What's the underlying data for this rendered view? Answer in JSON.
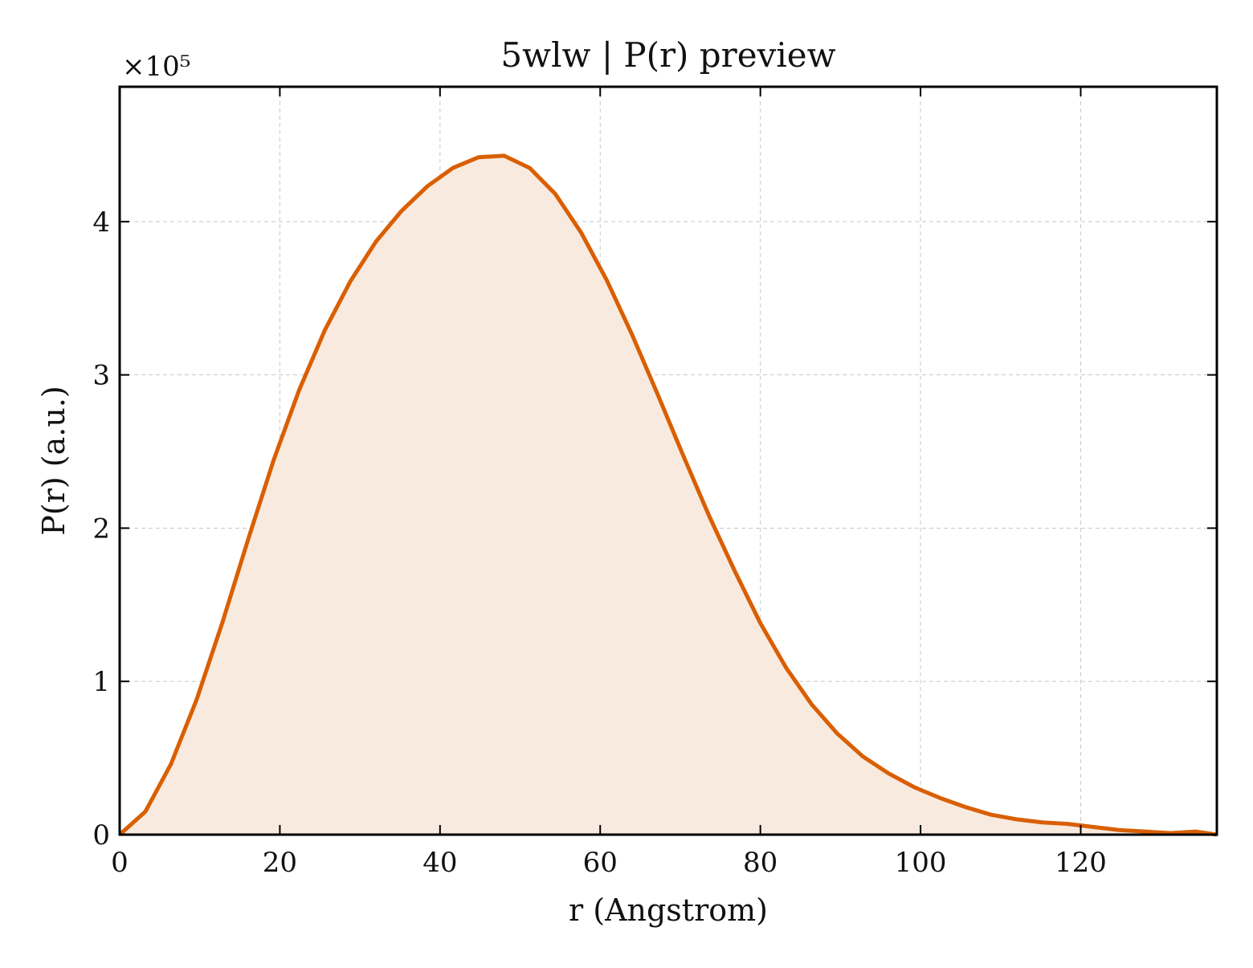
{
  "chart_data": {
    "type": "area",
    "title": "5wlw | P(r) preview",
    "xlabel": "r (Angstrom)",
    "ylabel": "P(r) (a.u.)",
    "y_multiplier_label": "×10⁵",
    "y_multiplier": 100000,
    "xlim": [
      0,
      137
    ],
    "ylim": [
      0,
      4.88
    ],
    "xticks": [
      0,
      20,
      40,
      60,
      80,
      100,
      120
    ],
    "yticks": [
      0,
      1,
      2,
      3,
      4
    ],
    "grid": true,
    "legend": "none",
    "line_color": "#d95f02",
    "fill_color": "#f9eadf",
    "series": [
      {
        "x": [
          0,
          3.2,
          6.4,
          9.6,
          12.8,
          16,
          19.2,
          22.4,
          25.6,
          28.8,
          32,
          35.2,
          38.4,
          41.6,
          44.8,
          48,
          51.2,
          54.4,
          57.6,
          60.8,
          64,
          67.2,
          70.4,
          73.6,
          76.8,
          80,
          83.2,
          86.4,
          89.6,
          92.8,
          96,
          99.2,
          102.4,
          105.6,
          108.8,
          112,
          115.2,
          118.4,
          121.6,
          124.8,
          128,
          131.2,
          134.4,
          137
        ],
        "y": [
          0,
          0.15,
          0.46,
          0.88,
          1.38,
          1.92,
          2.44,
          2.9,
          3.29,
          3.61,
          3.87,
          4.07,
          4.23,
          4.35,
          4.42,
          4.43,
          4.35,
          4.18,
          3.93,
          3.62,
          3.26,
          2.87,
          2.47,
          2.08,
          1.72,
          1.38,
          1.09,
          0.85,
          0.66,
          0.51,
          0.4,
          0.31,
          0.24,
          0.18,
          0.13,
          0.1,
          0.08,
          0.07,
          0.05,
          0.03,
          0.02,
          0.01,
          0.02,
          0
        ]
      }
    ]
  }
}
